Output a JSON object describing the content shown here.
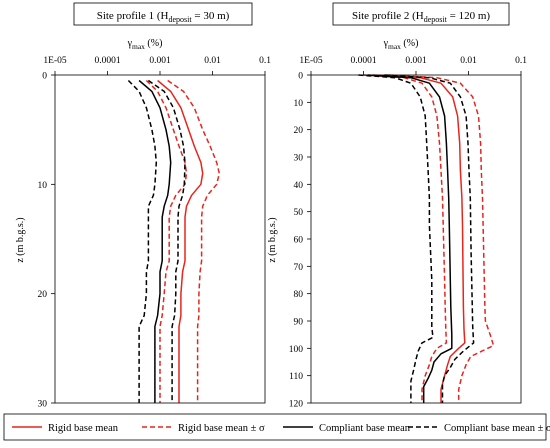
{
  "panels": [
    {
      "title_main": "Site profile 1 (H",
      "title_sub": "deposit",
      "title_tail": " = 30 m)",
      "xlabel_main": "γ",
      "xlabel_sub": "max",
      "xlabel_tail": " (%)",
      "ylabel": "z (m b.g.s.)",
      "x_ticks": [
        "1E-05",
        "0.0001",
        "0.001",
        "0.01",
        "0.1"
      ],
      "y_ticks": [
        "0",
        "10",
        "20",
        "30"
      ]
    },
    {
      "title_main": "Site profile 2 (H",
      "title_sub": "deposit",
      "title_tail": " = 120 m)",
      "xlabel_main": "γ",
      "xlabel_sub": "max",
      "xlabel_tail": " (%)",
      "ylabel": "z (m b.g.s.)",
      "x_ticks": [
        "1E-05",
        "0.0001",
        "0.001",
        "0.01",
        "0.1"
      ],
      "y_ticks": [
        "0",
        "10",
        "20",
        "30",
        "40",
        "50",
        "60",
        "70",
        "80",
        "90",
        "100",
        "110",
        "120"
      ]
    }
  ],
  "legend": [
    {
      "label": "Rigid base mean",
      "color": "#e8251d",
      "dash": "solid"
    },
    {
      "label": "Rigid base mean ± σ",
      "color": "#e8251d",
      "dash": "dashed"
    },
    {
      "label": "Compliant base mean",
      "color": "#000000",
      "dash": "solid"
    },
    {
      "label": "Compliant base mean ± σ",
      "color": "#000000",
      "dash": "dashed"
    }
  ],
  "chart_data": [
    {
      "type": "line",
      "x_scale": "log",
      "xlim": [
        1e-05,
        0.1
      ],
      "ylim": [
        0,
        30
      ],
      "y_inverted": true,
      "series": [
        {
          "name": "Rigid base mean",
          "color": "#e8251d",
          "dash": "solid",
          "points": [
            [
              0.0009,
              0.5
            ],
            [
              0.0016,
              1.5
            ],
            [
              0.0025,
              3
            ],
            [
              0.0035,
              5
            ],
            [
              0.0045,
              6.5
            ],
            [
              0.006,
              8
            ],
            [
              0.0065,
              9
            ],
            [
              0.006,
              10
            ],
            [
              0.004,
              11
            ],
            [
              0.0032,
              12
            ],
            [
              0.003,
              13
            ],
            [
              0.003,
              15
            ],
            [
              0.003,
              17
            ],
            [
              0.0027,
              18
            ],
            [
              0.0025,
              20
            ],
            [
              0.0025,
              22
            ],
            [
              0.0023,
              23
            ],
            [
              0.0023,
              25
            ],
            [
              0.0023,
              27
            ],
            [
              0.0023,
              30
            ]
          ]
        },
        {
          "name": "Rigid base mean + σ",
          "color": "#e8251d",
          "dash": "dashed",
          "points": [
            [
              0.0014,
              0.5
            ],
            [
              0.0028,
              1.5
            ],
            [
              0.0045,
              3
            ],
            [
              0.0065,
              5
            ],
            [
              0.009,
              6.5
            ],
            [
              0.012,
              8
            ],
            [
              0.0135,
              9
            ],
            [
              0.012,
              10
            ],
            [
              0.008,
              11
            ],
            [
              0.0065,
              12
            ],
            [
              0.0062,
              13
            ],
            [
              0.0062,
              15
            ],
            [
              0.0062,
              17
            ],
            [
              0.0058,
              18
            ],
            [
              0.0055,
              20
            ],
            [
              0.0055,
              22
            ],
            [
              0.0052,
              23
            ],
            [
              0.0052,
              25
            ],
            [
              0.0052,
              27
            ],
            [
              0.0052,
              30
            ]
          ]
        },
        {
          "name": "Rigid base mean − σ",
          "color": "#e8251d",
          "dash": "dashed",
          "points": [
            [
              0.00055,
              0.5
            ],
            [
              0.0009,
              1.5
            ],
            [
              0.0013,
              3
            ],
            [
              0.0018,
              5
            ],
            [
              0.0023,
              6.5
            ],
            [
              0.003,
              8
            ],
            [
              0.0032,
              9
            ],
            [
              0.003,
              10
            ],
            [
              0.002,
              11
            ],
            [
              0.0016,
              12
            ],
            [
              0.0015,
              13
            ],
            [
              0.0015,
              15
            ],
            [
              0.0015,
              17
            ],
            [
              0.0013,
              18
            ],
            [
              0.0012,
              20
            ],
            [
              0.0011,
              22
            ],
            [
              0.001,
              23
            ],
            [
              0.001,
              25
            ],
            [
              0.001,
              27
            ],
            [
              0.001,
              30
            ]
          ]
        },
        {
          "name": "Compliant base mean",
          "color": "#000000",
          "dash": "solid",
          "points": [
            [
              0.0004,
              0.5
            ],
            [
              0.0007,
              1.5
            ],
            [
              0.001,
              3
            ],
            [
              0.0013,
              5
            ],
            [
              0.0015,
              6.5
            ],
            [
              0.0016,
              8
            ],
            [
              0.0015,
              10
            ],
            [
              0.0014,
              11
            ],
            [
              0.0012,
              12
            ],
            [
              0.0011,
              13
            ],
            [
              0.0011,
              15
            ],
            [
              0.0011,
              17
            ],
            [
              0.001,
              18
            ],
            [
              0.001,
              20
            ],
            [
              0.0009,
              22
            ],
            [
              0.0008,
              23
            ],
            [
              0.0008,
              25
            ],
            [
              0.0008,
              27
            ],
            [
              0.0008,
              30
            ]
          ]
        },
        {
          "name": "Compliant base mean + σ",
          "color": "#000000",
          "dash": "dashed",
          "points": [
            [
              0.0006,
              0.5
            ],
            [
              0.0012,
              1.5
            ],
            [
              0.0018,
              3
            ],
            [
              0.0024,
              5
            ],
            [
              0.0028,
              6.5
            ],
            [
              0.003,
              8
            ],
            [
              0.0029,
              10
            ],
            [
              0.0027,
              11
            ],
            [
              0.0023,
              12
            ],
            [
              0.0022,
              13
            ],
            [
              0.0022,
              15
            ],
            [
              0.0022,
              17
            ],
            [
              0.002,
              18
            ],
            [
              0.002,
              20
            ],
            [
              0.0019,
              22
            ],
            [
              0.0017,
              23
            ],
            [
              0.0017,
              25
            ],
            [
              0.0017,
              27
            ],
            [
              0.0017,
              30
            ]
          ]
        },
        {
          "name": "Compliant base mean − σ",
          "color": "#000000",
          "dash": "dashed",
          "points": [
            [
              0.00025,
              0.5
            ],
            [
              0.0004,
              1.5
            ],
            [
              0.00055,
              3
            ],
            [
              0.0007,
              5
            ],
            [
              0.0008,
              6.5
            ],
            [
              0.00085,
              8
            ],
            [
              0.0008,
              10
            ],
            [
              0.00075,
              11
            ],
            [
              0.0006,
              12
            ],
            [
              0.0006,
              13
            ],
            [
              0.0006,
              15
            ],
            [
              0.0006,
              17
            ],
            [
              0.00055,
              18
            ],
            [
              0.00055,
              20
            ],
            [
              0.0005,
              22
            ],
            [
              0.0004,
              23
            ],
            [
              0.0004,
              25
            ],
            [
              0.0004,
              27
            ],
            [
              0.0004,
              30
            ]
          ]
        }
      ]
    },
    {
      "type": "line",
      "x_scale": "log",
      "xlim": [
        1e-05,
        0.1
      ],
      "ylim": [
        0,
        120
      ],
      "y_inverted": true,
      "series": [
        {
          "name": "Rigid base mean",
          "color": "#e8251d",
          "dash": "solid",
          "points": [
            [
              0.00015,
              0
            ],
            [
              0.0012,
              1
            ],
            [
              0.003,
              3
            ],
            [
              0.005,
              8
            ],
            [
              0.0062,
              15
            ],
            [
              0.0068,
              25
            ],
            [
              0.007,
              35
            ],
            [
              0.0075,
              45
            ],
            [
              0.0077,
              55
            ],
            [
              0.0078,
              65
            ],
            [
              0.0079,
              75
            ],
            [
              0.008,
              85
            ],
            [
              0.0082,
              93
            ],
            [
              0.0085,
              98
            ],
            [
              0.0065,
              100
            ],
            [
              0.0045,
              103
            ],
            [
              0.004,
              106
            ],
            [
              0.0035,
              110
            ],
            [
              0.003,
              115
            ],
            [
              0.003,
              120
            ]
          ]
        },
        {
          "name": "Rigid base mean + σ",
          "color": "#e8251d",
          "dash": "dashed",
          "points": [
            [
              0.0003,
              0
            ],
            [
              0.0025,
              1
            ],
            [
              0.007,
              3
            ],
            [
              0.012,
              8
            ],
            [
              0.0155,
              15
            ],
            [
              0.017,
              25
            ],
            [
              0.0175,
              35
            ],
            [
              0.0185,
              45
            ],
            [
              0.019,
              55
            ],
            [
              0.0195,
              65
            ],
            [
              0.02,
              75
            ],
            [
              0.0205,
              85
            ],
            [
              0.021,
              90
            ],
            [
              0.027,
              96
            ],
            [
              0.03,
              99
            ],
            [
              0.018,
              101
            ],
            [
              0.011,
              103
            ],
            [
              0.009,
              106
            ],
            [
              0.0075,
              110
            ],
            [
              0.0065,
              115
            ],
            [
              0.0065,
              120
            ]
          ]
        },
        {
          "name": "Rigid base mean − σ",
          "color": "#e8251d",
          "dash": "dashed",
          "points": [
            [
              0.0001,
              0
            ],
            [
              0.0006,
              1
            ],
            [
              0.0013,
              3
            ],
            [
              0.002,
              8
            ],
            [
              0.0025,
              15
            ],
            [
              0.0028,
              25
            ],
            [
              0.003,
              35
            ],
            [
              0.0032,
              45
            ],
            [
              0.0033,
              55
            ],
            [
              0.0034,
              65
            ],
            [
              0.0035,
              75
            ],
            [
              0.0036,
              85
            ],
            [
              0.0037,
              93
            ],
            [
              0.0038,
              98
            ],
            [
              0.0025,
              100
            ],
            [
              0.002,
              103
            ],
            [
              0.0018,
              106
            ],
            [
              0.0015,
              110
            ],
            [
              0.0013,
              115
            ],
            [
              0.0013,
              120
            ]
          ]
        },
        {
          "name": "Compliant base mean",
          "color": "#000000",
          "dash": "solid",
          "points": [
            [
              0.00012,
              0
            ],
            [
              0.0008,
              1
            ],
            [
              0.0018,
              3
            ],
            [
              0.0028,
              8
            ],
            [
              0.0035,
              15
            ],
            [
              0.0038,
              25
            ],
            [
              0.004,
              35
            ],
            [
              0.0042,
              45
            ],
            [
              0.0043,
              55
            ],
            [
              0.0044,
              65
            ],
            [
              0.0045,
              75
            ],
            [
              0.0046,
              85
            ],
            [
              0.0048,
              95
            ],
            [
              0.0048,
              100
            ],
            [
              0.003,
              102
            ],
            [
              0.0022,
              105
            ],
            [
              0.002,
              108
            ],
            [
              0.0017,
              111
            ],
            [
              0.0014,
              114
            ],
            [
              0.0014,
              120
            ]
          ]
        },
        {
          "name": "Compliant base mean + σ",
          "color": "#000000",
          "dash": "dashed",
          "points": [
            [
              0.00025,
              0
            ],
            [
              0.0018,
              1
            ],
            [
              0.0045,
              3
            ],
            [
              0.007,
              8
            ],
            [
              0.009,
              15
            ],
            [
              0.0098,
              25
            ],
            [
              0.0102,
              35
            ],
            [
              0.0108,
              45
            ],
            [
              0.011,
              55
            ],
            [
              0.0112,
              65
            ],
            [
              0.0115,
              75
            ],
            [
              0.0118,
              85
            ],
            [
              0.012,
              92
            ],
            [
              0.0125,
              98
            ],
            [
              0.008,
              101
            ],
            [
              0.0055,
              104
            ],
            [
              0.0045,
              107
            ],
            [
              0.0035,
              110
            ],
            [
              0.0032,
              113
            ],
            [
              0.0032,
              120
            ]
          ]
        },
        {
          "name": "Compliant base mean − σ",
          "color": "#000000",
          "dash": "dashed",
          "points": [
            [
              8e-05,
              0
            ],
            [
              0.0004,
              1
            ],
            [
              0.0008,
              3
            ],
            [
              0.0012,
              8
            ],
            [
              0.0015,
              15
            ],
            [
              0.0016,
              25
            ],
            [
              0.0017,
              35
            ],
            [
              0.0018,
              45
            ],
            [
              0.0018,
              55
            ],
            [
              0.0019,
              65
            ],
            [
              0.002,
              75
            ],
            [
              0.002,
              85
            ],
            [
              0.002,
              92
            ],
            [
              0.0021,
              96
            ],
            [
              0.0013,
              98
            ],
            [
              0.0011,
              101
            ],
            [
              0.001,
              104
            ],
            [
              0.0009,
              108
            ],
            [
              0.0008,
              112
            ],
            [
              0.0008,
              120
            ]
          ]
        }
      ]
    }
  ]
}
